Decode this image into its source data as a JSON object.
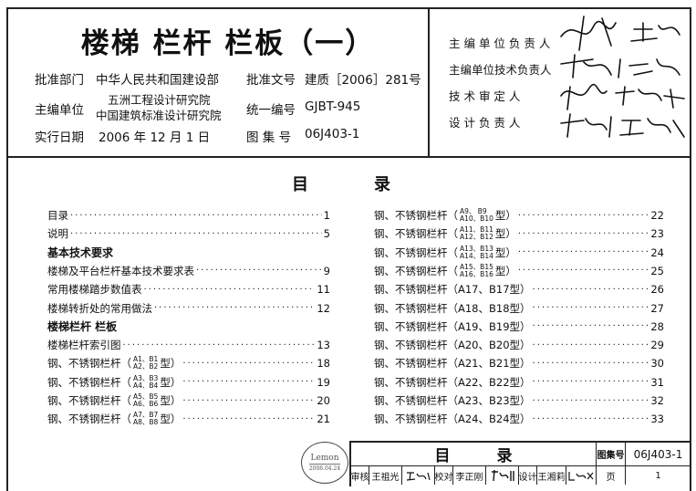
{
  "header": {
    "title": "楼梯 栏杆 栏板（一）",
    "approval_dept_label": "批准部门",
    "approval_dept": "中华人民共和国建设部",
    "approval_no_label": "批准文号",
    "approval_no": "建质［2006］281号",
    "editor_label": "主编单位",
    "editor_1": "五洲工程设计研究院",
    "editor_2": "中国建筑标准设计研究院",
    "unified_no_label": "统一编号",
    "unified_no": "GJBT-945",
    "date_label": "实行日期",
    "date": "2006 年 12 月 1 日",
    "atlas_no_label": "图 集 号",
    "atlas_no": "06J403-1"
  },
  "responsible": [
    {
      "role": "主 编 单 位 负 责 人"
    },
    {
      "role": "主编单位技术负责人"
    },
    {
      "role": "技   术   审   定   人"
    },
    {
      "role": "设   计   负   责   人"
    }
  ],
  "toc": {
    "title_1": "目",
    "title_2": "录",
    "left": [
      {
        "text": "目录",
        "page": "1"
      },
      {
        "text": "说明",
        "page": "5"
      },
      {
        "text": "基本技术要求",
        "heading": true
      },
      {
        "text": "楼梯及平台栏杆基本技术要求表",
        "page": "9"
      },
      {
        "text": "常用楼梯踏步数值表",
        "page": "11"
      },
      {
        "text": "楼梯转折处的常用做法",
        "page": "12"
      },
      {
        "text": "楼梯栏杆 栏板",
        "heading": true
      },
      {
        "text": "楼梯栏杆索引图",
        "page": "13"
      },
      {
        "text": "钢、不锈钢栏杆（",
        "top": "A1、B1",
        "bot": "A2、B2",
        "post": " 型）",
        "page": "18"
      },
      {
        "text": "钢、不锈钢栏杆（",
        "top": "A3、B3",
        "bot": "A4、B4",
        "post": " 型）",
        "page": "19"
      },
      {
        "text": "钢、不锈钢栏杆（",
        "top": "A5、B5",
        "bot": "A6、B6",
        "post": " 型）",
        "page": "20"
      },
      {
        "text": "钢、不锈钢栏杆（",
        "top": "A7、B7",
        "bot": "A8、B8",
        "post": " 型）",
        "page": "21"
      }
    ],
    "right": [
      {
        "text": "钢、不锈钢栏杆（",
        "top": "A9、 B9",
        "bot": "A10、B10",
        "post": "型）",
        "page": "22"
      },
      {
        "text": "钢、不锈钢栏杆（",
        "top": "A11、B11",
        "bot": "A12、B12",
        "post": "型）",
        "page": "23"
      },
      {
        "text": "钢、不锈钢栏杆（",
        "top": "A13、B13",
        "bot": "A14、B14",
        "post": "型）",
        "page": "24"
      },
      {
        "text": "钢、不锈钢栏杆（",
        "top": "A15、B15",
        "bot": "A16、B16",
        "post": "型）",
        "page": "25"
      },
      {
        "text": "钢、不锈钢栏杆（A17、B17型）",
        "page": "26"
      },
      {
        "text": "钢、不锈钢栏杆（A18、B18型）",
        "page": "27"
      },
      {
        "text": "钢、不锈钢栏杆（A19、B19型）",
        "page": "28"
      },
      {
        "text": "钢、不锈钢栏杆（A20、B20型）",
        "page": "29"
      },
      {
        "text": "钢、不锈钢栏杆（A21、B21型）",
        "page": "30"
      },
      {
        "text": "钢、不锈钢栏杆（A22、B22型）",
        "page": "31"
      },
      {
        "text": "钢、不锈钢栏杆（A23、B23型）",
        "page": "32"
      },
      {
        "text": "钢、不锈钢栏杆（A24、B24型）",
        "page": "33"
      }
    ]
  },
  "stamp": {
    "text": "Lemon",
    "date": "2008.04.24"
  },
  "title_block": {
    "title": "目　　　录",
    "atlas_label": "图集号",
    "atlas_no": "06J403-1",
    "review_label": "审核",
    "reviewer": "王祖光",
    "check_label": "校对",
    "checker": "李正刚",
    "design_label": "设计",
    "designer": "王湘莉",
    "page_label": "页",
    "page": "1"
  }
}
